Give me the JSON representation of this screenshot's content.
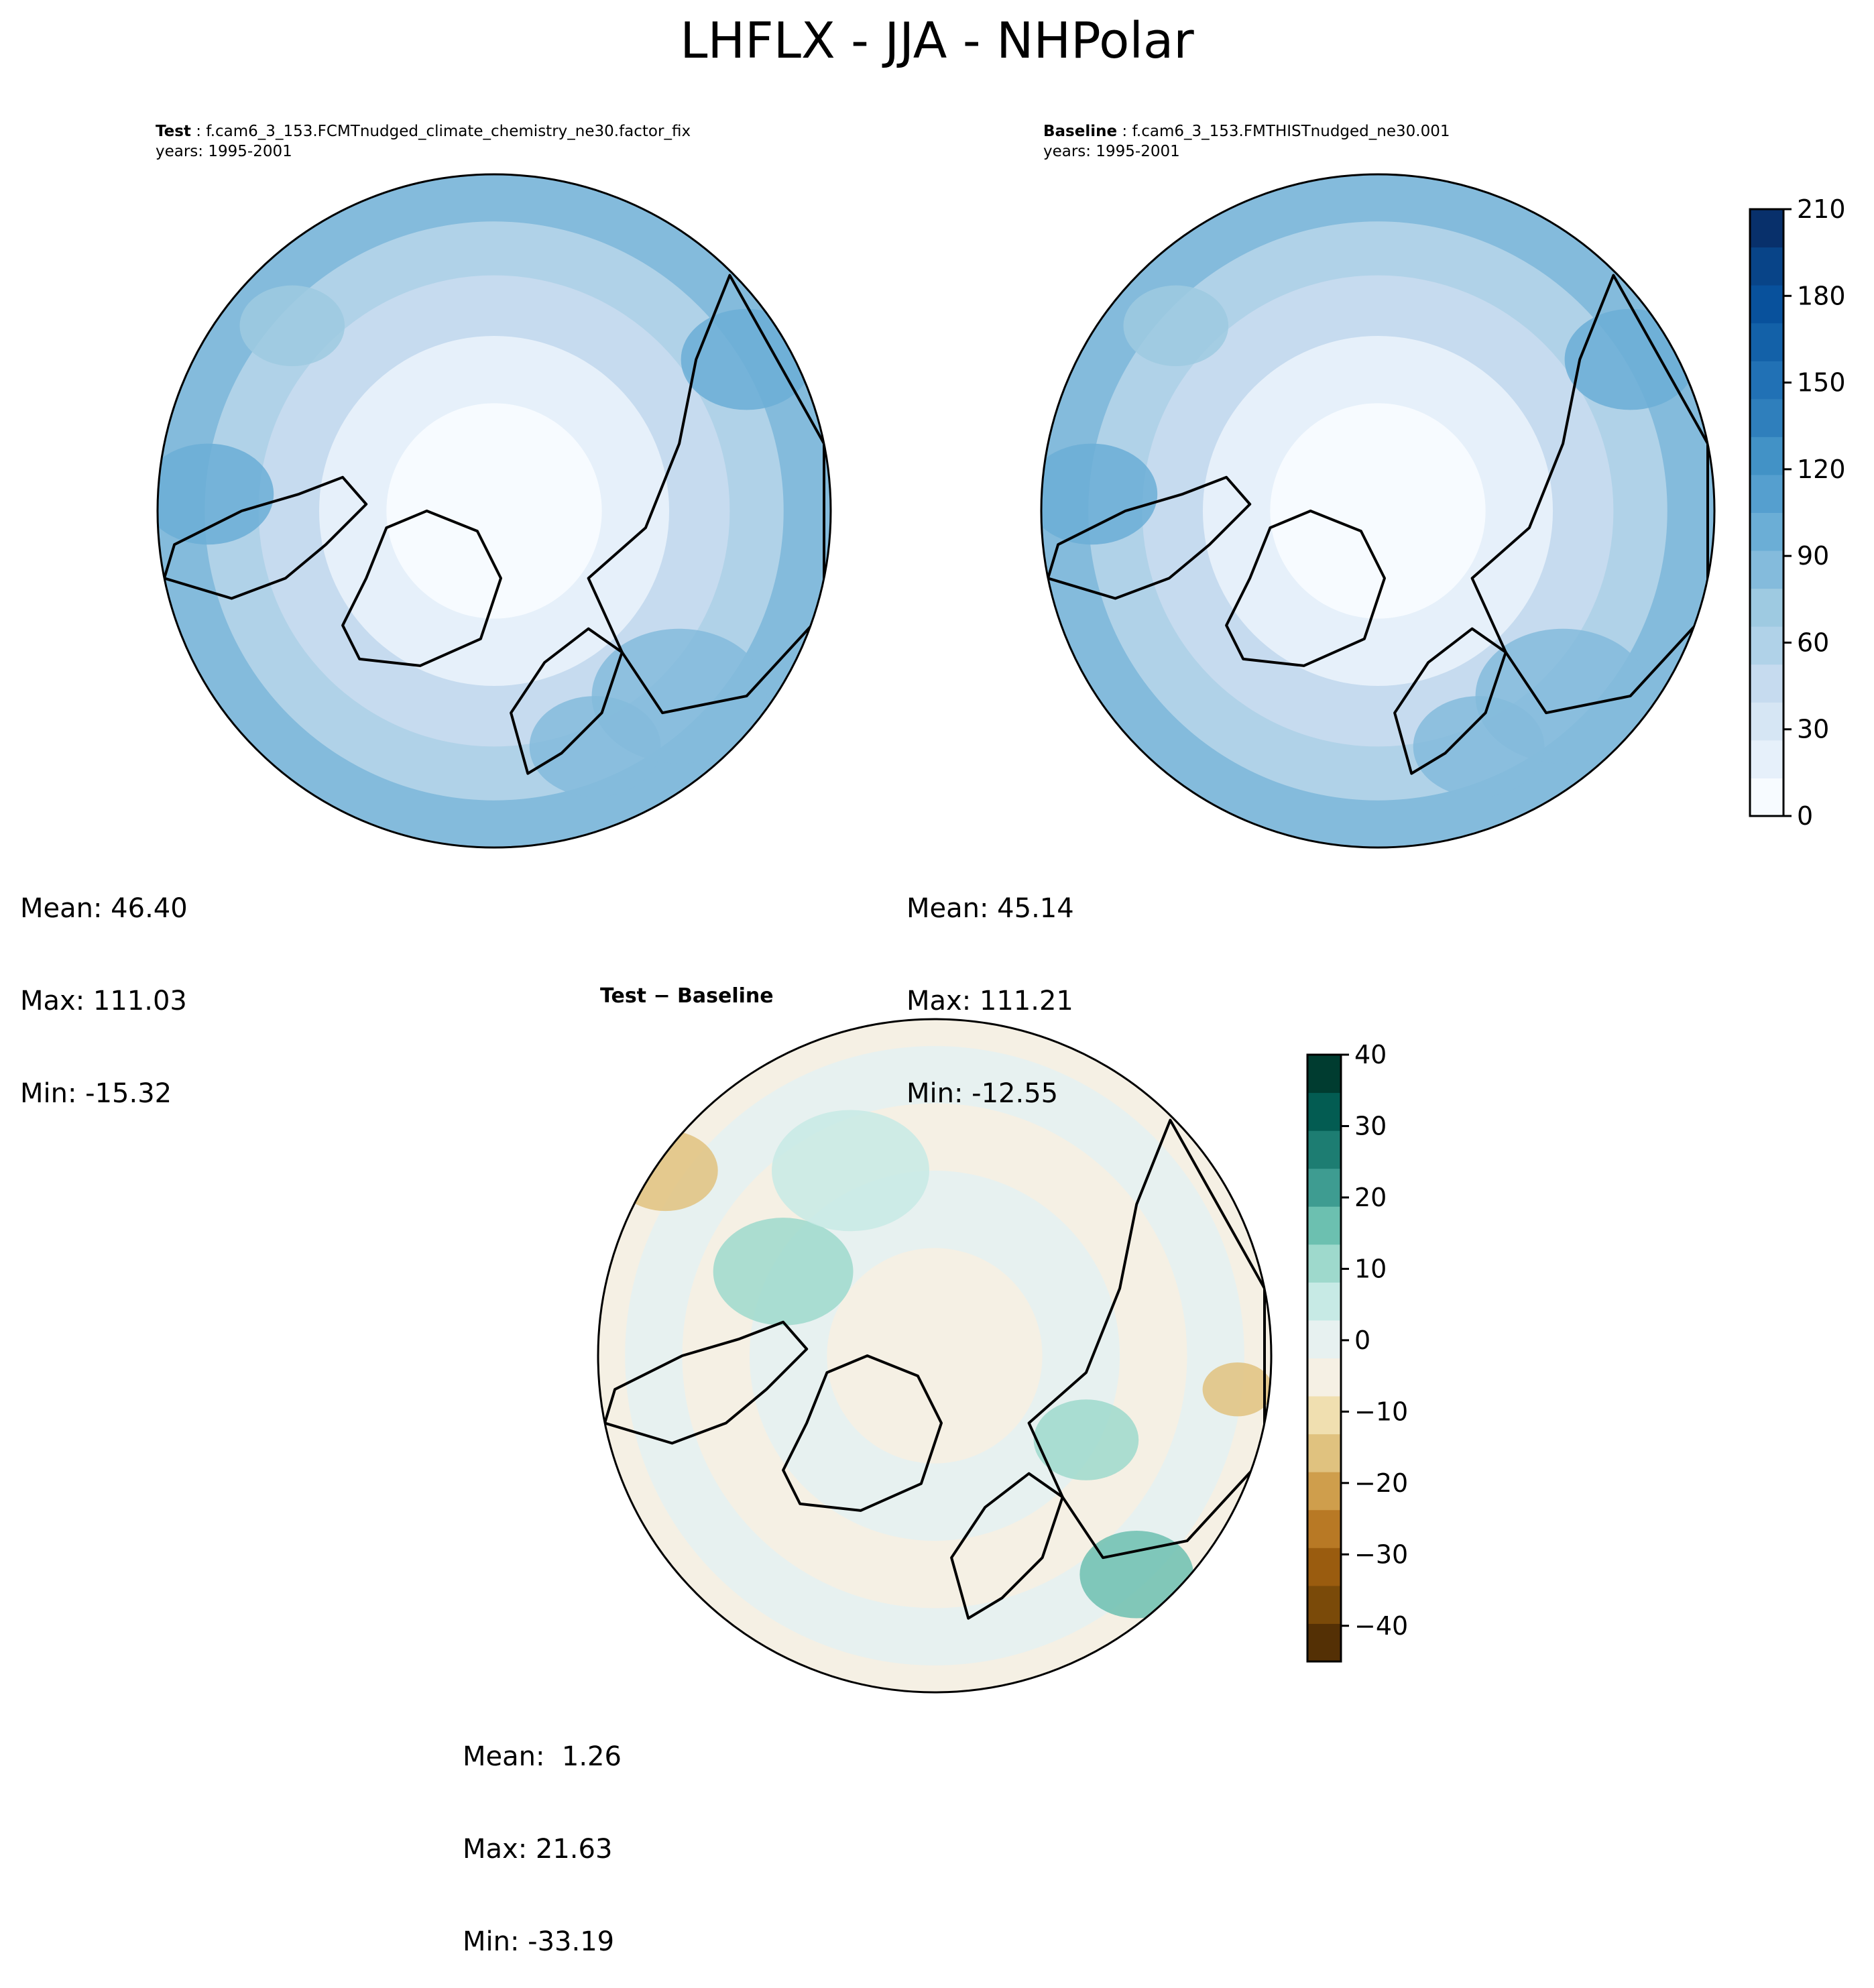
{
  "title": "LHFLX - JJA - NHPolar",
  "panels": {
    "test": {
      "label": "Test",
      "case": "f.cam6_3_153.FCMTnudged_climate_chemistry_ne30.factor_fix",
      "years": "years: 1995-2001",
      "stats": {
        "mean": "Mean: 46.40",
        "max": "Max: 111.03",
        "min": "Min: -15.32"
      }
    },
    "baseline": {
      "label": "Baseline",
      "case": "f.cam6_3_153.FMTHISTnudged_ne30.001",
      "years": "years: 1995-2001",
      "stats": {
        "mean": "Mean: 45.14",
        "max": "Max: 111.21",
        "min": "Min: -12.55"
      }
    },
    "diff": {
      "label": "Test − Baseline",
      "stats": {
        "mean": "Mean:  1.26",
        "max": "Max: 21.63",
        "min": "Min: -33.19"
      }
    }
  },
  "chart_data": [
    {
      "type": "heatmap",
      "projection": "north-polar-stereographic",
      "panel": "Test",
      "colormap": "Blues",
      "colorbar": {
        "min": 0,
        "max": 210,
        "ticks": [
          0,
          30,
          60,
          90,
          120,
          150,
          180,
          210
        ]
      },
      "summary": {
        "mean": 46.4,
        "max": 111.03,
        "min": -15.32
      }
    },
    {
      "type": "heatmap",
      "projection": "north-polar-stereographic",
      "panel": "Baseline",
      "colormap": "Blues",
      "colorbar": {
        "min": 0,
        "max": 210,
        "ticks": [
          0,
          30,
          60,
          90,
          120,
          150,
          180,
          210
        ]
      },
      "summary": {
        "mean": 45.14,
        "max": 111.21,
        "min": -12.55
      }
    },
    {
      "type": "heatmap",
      "projection": "north-polar-stereographic",
      "panel": "Test − Baseline",
      "colormap": "BrBG",
      "colorbar": {
        "min": -45,
        "max": 40,
        "ticks": [
          40,
          30,
          20,
          10,
          0,
          -10,
          -20,
          -30,
          -40
        ],
        "tick_labels": [
          "40",
          "30",
          "20",
          "10",
          "0",
          "−10",
          "−20",
          "−30",
          "−40"
        ]
      },
      "summary": {
        "mean": 1.26,
        "max": 21.63,
        "min": -33.19
      }
    }
  ],
  "colors": {
    "blues": [
      "#f7fbff",
      "#e6f0fa",
      "#d6e6f4",
      "#c6dbef",
      "#b0d2e8",
      "#9ecae1",
      "#84bbdc",
      "#6baed6",
      "#559fcf",
      "#4292c6",
      "#2f7fbc",
      "#2171b5",
      "#1361a8",
      "#08519c",
      "#084488",
      "#08306b"
    ],
    "brbg": [
      "#543005",
      "#7a4a09",
      "#9a5c0f",
      "#b87925",
      "#cf9e4c",
      "#e0c27f",
      "#f0dfb0",
      "#f5f0e4",
      "#e7f1f0",
      "#c7eae5",
      "#9ed9cc",
      "#6cc0b0",
      "#3e9c91",
      "#1d7d72",
      "#035c52",
      "#003c30"
    ]
  }
}
